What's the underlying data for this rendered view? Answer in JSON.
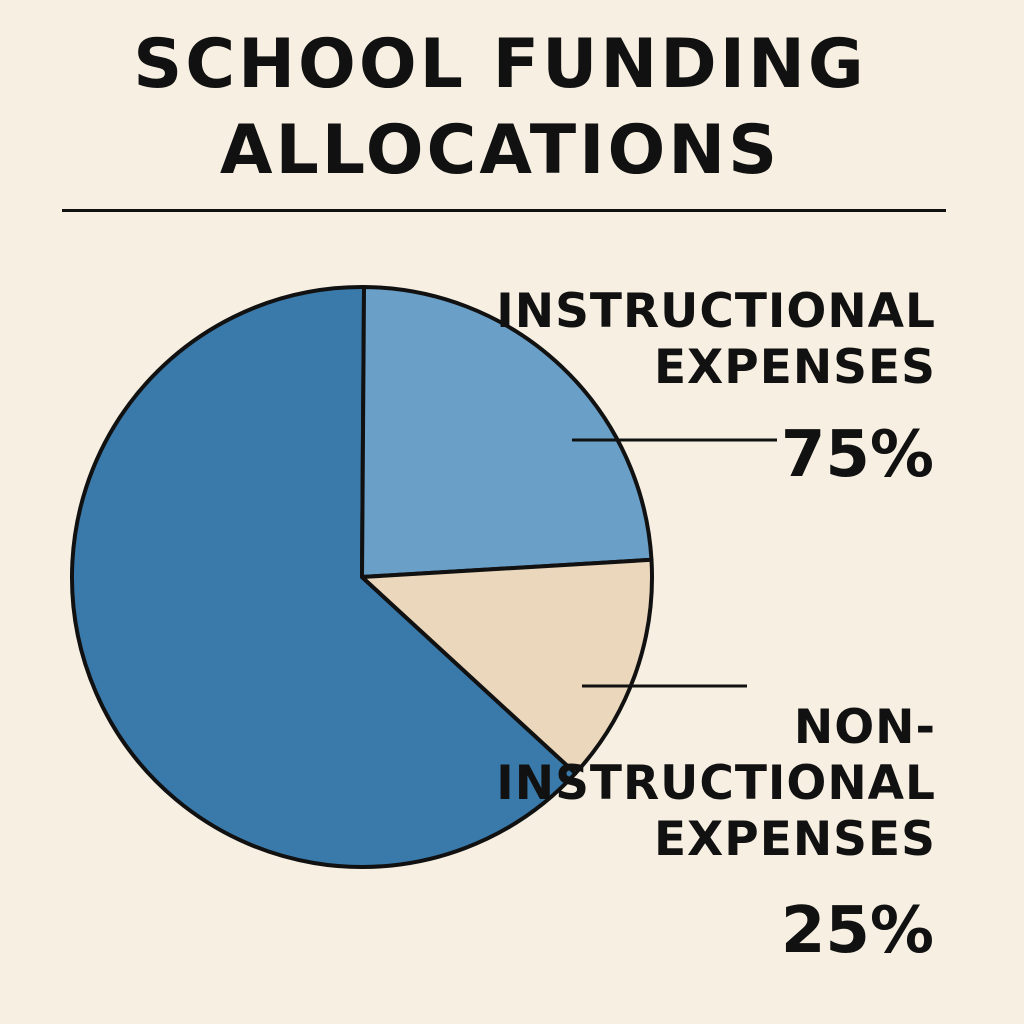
{
  "chart_data": {
    "type": "pie",
    "title": "SCHOOL FUNDING ALLOCATIONS",
    "title_lines": [
      "SCHOOL FUNDING",
      "ALLOCATIONS"
    ],
    "slices": [
      {
        "name": "INSTRUCTIONAL EXPENSES",
        "label_lines": [
          "INSTRUCTIONAL",
          "EXPENSES"
        ],
        "value": 75,
        "value_label": "75%",
        "color": "#6a9fc7"
      },
      {
        "name": "NON-INSTRUCTIONAL EXPENSES",
        "label_lines": [
          "NON-",
          "INSTRUCTIONAL",
          "EXPENSES"
        ],
        "value": 25,
        "value_label": "25%",
        "color": "#ebd7bc"
      }
    ],
    "unlabeled_slice_color": "#3a7aab",
    "legend": "none"
  }
}
